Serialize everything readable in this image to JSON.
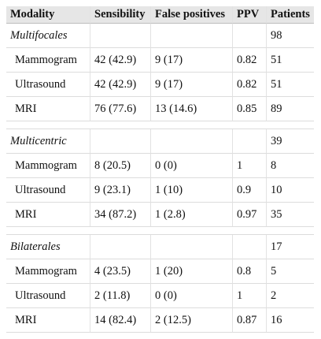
{
  "headers": [
    "Modality",
    "Sensibility",
    "False positives",
    "PPV",
    "Patients"
  ],
  "groups": [
    {
      "label": "Multifocales",
      "patients": "98",
      "rows": [
        {
          "modality": "Mammogram",
          "sensibility": "42 (42.9)",
          "false_positives": "9 (17)",
          "ppv": "0.82",
          "patients": "51"
        },
        {
          "modality": "Ultrasound",
          "sensibility": "42 (42.9)",
          "false_positives": "9 (17)",
          "ppv": "0.82",
          "patients": "51"
        },
        {
          "modality": "MRI",
          "sensibility": "76 (77.6)",
          "false_positives": "13 (14.6)",
          "ppv": "0.85",
          "patients": "89"
        }
      ]
    },
    {
      "label": "Multicentric",
      "patients": "39",
      "rows": [
        {
          "modality": "Mammogram",
          "sensibility": "8 (20.5)",
          "false_positives": "0 (0)",
          "ppv": "1",
          "patients": "8"
        },
        {
          "modality": "Ultrasound",
          "sensibility": "9 (23.1)",
          "false_positives": "1 (10)",
          "ppv": "0.9",
          "patients": "10"
        },
        {
          "modality": "MRI",
          "sensibility": "34 (87.2)",
          "false_positives": "1 (2.8)",
          "ppv": "0.97",
          "patients": "35"
        }
      ]
    },
    {
      "label": "Bilaterales",
      "patients": "17",
      "rows": [
        {
          "modality": "Mammogram",
          "sensibility": "4 (23.5)",
          "false_positives": "1 (20)",
          "ppv": "0.8",
          "patients": "5"
        },
        {
          "modality": "Ultrasound",
          "sensibility": "2 (11.8)",
          "false_positives": "0 (0)",
          "ppv": "1",
          "patients": "2"
        },
        {
          "modality": "MRI",
          "sensibility": "14 (82.4)",
          "false_positives": "2 (12.5)",
          "ppv": "0.87",
          "patients": "16"
        }
      ]
    }
  ]
}
